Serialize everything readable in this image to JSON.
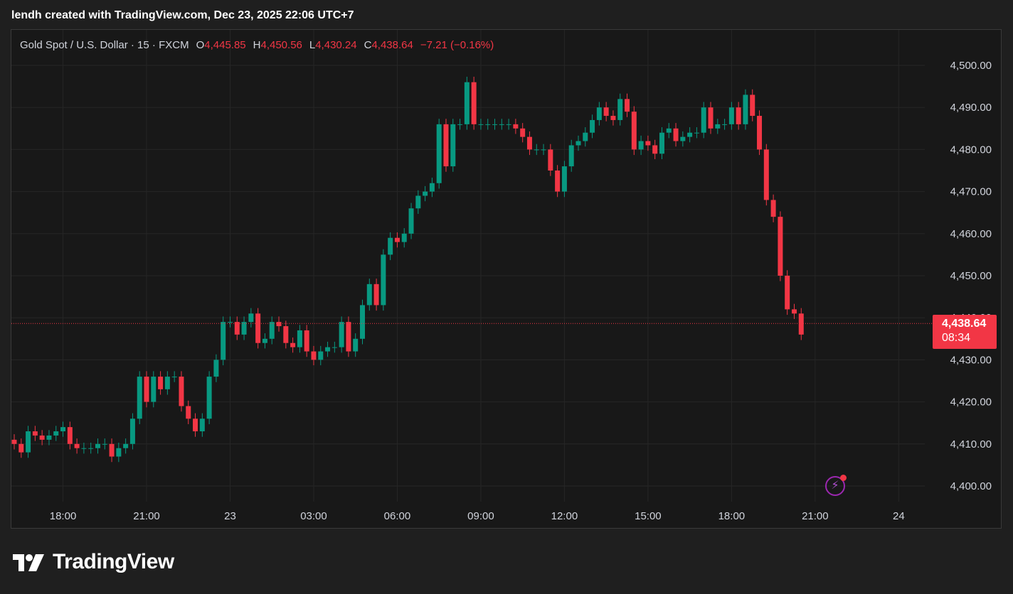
{
  "header": {
    "text": "lendh created with TradingView.com, Dec 23, 2025 22:06 UTC+7"
  },
  "legend": {
    "symbol": "Gold Spot / U.S. Dollar · 15 · FXCM",
    "o_label": "O",
    "o_value": "4,445.85",
    "h_label": "H",
    "h_value": "4,450.56",
    "l_label": "L",
    "l_value": "4,430.24",
    "c_label": "C",
    "c_value": "4,438.64",
    "change": "−7.21 (−0.16%)"
  },
  "last_price": {
    "price": "4,438.64",
    "countdown": "08:34",
    "value": 4438.64
  },
  "brand": {
    "name": "TradingView"
  },
  "icons": {
    "alert": "lightning-bolt-icon",
    "logo": "tradingview-logo-icon"
  },
  "colors": {
    "up": "#089981",
    "down": "#f23645",
    "background": "#181818",
    "grid": "#262626",
    "alert": "#9c27b0"
  },
  "chart_data": {
    "type": "candlestick",
    "interval_minutes": 15,
    "start": "2025-12-22 16:15",
    "ylim": [
      4395,
      4505
    ],
    "y_ticks": [
      "4,400.00",
      "4,410.00",
      "4,420.00",
      "4,430.00",
      "4,440.00",
      "4,450.00",
      "4,460.00",
      "4,470.00",
      "4,480.00",
      "4,490.00",
      "4,500.00"
    ],
    "x_ticks": [
      {
        "label": "18:00",
        "time": "2025-12-22 18:00"
      },
      {
        "label": "21:00",
        "time": "2025-12-22 21:00"
      },
      {
        "label": "23",
        "time": "2025-12-23 00:00"
      },
      {
        "label": "03:00",
        "time": "2025-12-23 03:00"
      },
      {
        "label": "06:00",
        "time": "2025-12-23 06:00"
      },
      {
        "label": "09:00",
        "time": "2025-12-23 09:00"
      },
      {
        "label": "12:00",
        "time": "2025-12-23 12:00"
      },
      {
        "label": "15:00",
        "time": "2025-12-23 15:00"
      },
      {
        "label": "18:00",
        "time": "2025-12-23 18:00"
      },
      {
        "label": "21:00",
        "time": "2025-12-23 21:00"
      },
      {
        "label": "24",
        "time": "2025-12-24 00:00"
      }
    ],
    "closes": [
      4410,
      4408,
      4413,
      4412,
      4411,
      4412,
      4413,
      4414,
      4410,
      4409,
      4409,
      4409,
      4410,
      4410,
      4407,
      4409,
      4410,
      4416,
      4426,
      4420,
      4426,
      4423,
      4426,
      4426,
      4419,
      4416,
      4413,
      4416,
      4426,
      4430,
      4439,
      4439,
      4436,
      4439,
      4441,
      4434,
      4435,
      4439,
      4438,
      4434,
      4433,
      4437,
      4432,
      4430,
      4432,
      4433,
      4433,
      4439,
      4432,
      4435,
      4443,
      4448,
      4443,
      4455,
      4459,
      4458,
      4460,
      4466,
      4469,
      4470,
      4472,
      4486,
      4476,
      4486,
      4486,
      4496,
      4486,
      4486,
      4486,
      4486,
      4486,
      4486,
      4485,
      4483,
      4480,
      4480,
      4480,
      4475,
      4470,
      4476,
      4481,
      4482,
      4484,
      4487,
      4490,
      4488,
      4487,
      4492,
      4489,
      4480,
      4482,
      4481,
      4479,
      4484,
      4485,
      4482,
      4483,
      4484,
      4484,
      4490,
      4485,
      4486,
      4486,
      4490,
      4486,
      4493,
      4488,
      4480,
      4468,
      4464,
      4450,
      4442,
      4441,
      4436
    ]
  }
}
